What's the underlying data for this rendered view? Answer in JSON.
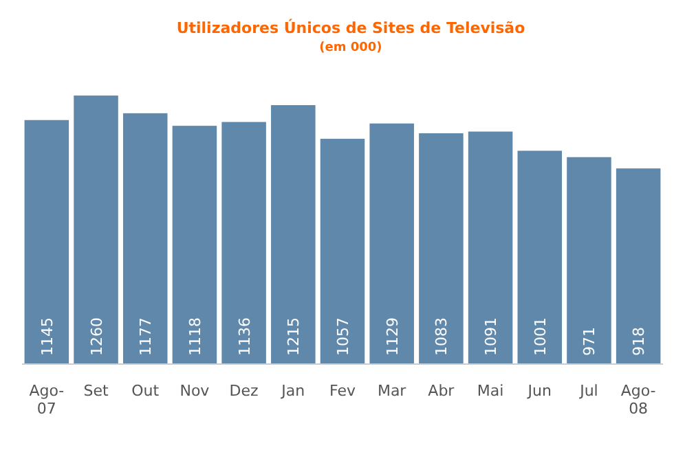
{
  "chart_data": {
    "type": "bar",
    "title": "Utilizadores Únicos de Sites de Televisão",
    "subtitle": "(em 000)",
    "categories": [
      "Ago-07",
      "Set",
      "Out",
      "Nov",
      "Dez",
      "Jan",
      "Fev",
      "Mar",
      "Abr",
      "Mai",
      "Jun",
      "Jul",
      "Ago-08"
    ],
    "values": [
      1145,
      1260,
      1177,
      1118,
      1136,
      1215,
      1057,
      1129,
      1083,
      1091,
      1001,
      971,
      918
    ],
    "color": "#5f88ab",
    "data_labels": true
  }
}
